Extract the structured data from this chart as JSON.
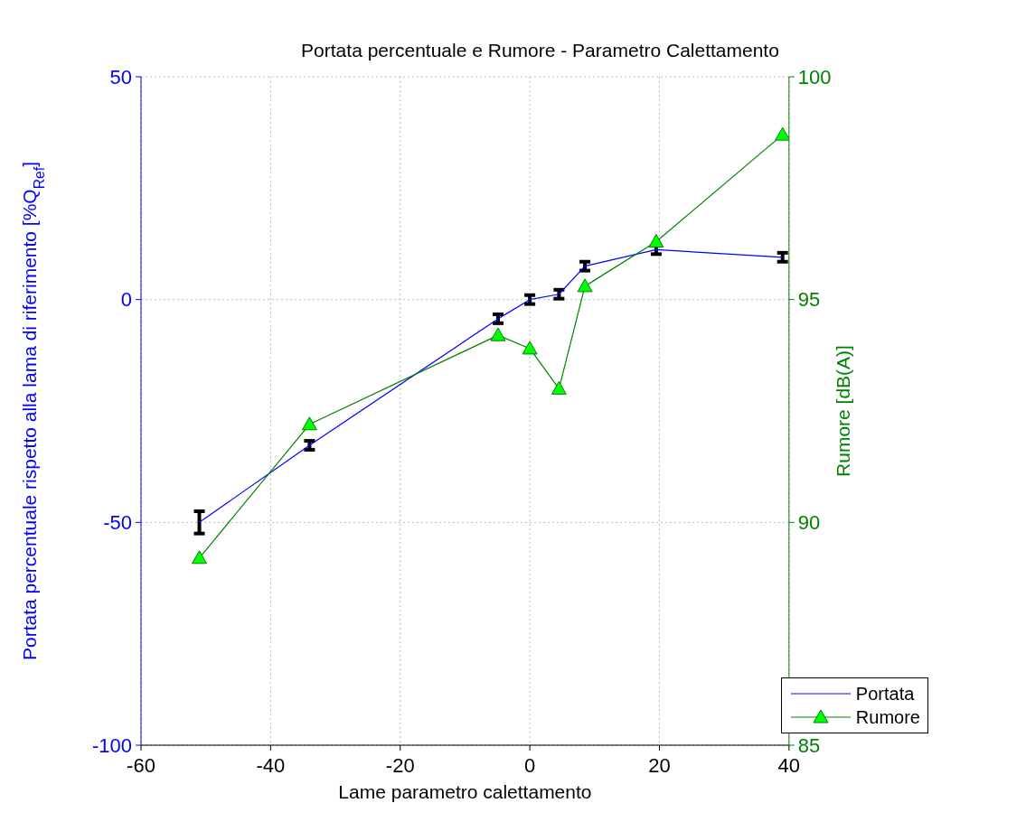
{
  "chart_data": {
    "type": "line",
    "title": "Portata percentuale e Rumore - Parametro Calettamento",
    "xlabel": "Lame parametro calettamento",
    "ylabel": "Portata percentuale rispetto alla lama di riferimento [%Q$_{Ref}$]",
    "y2label": "Rumore [dB(A)]",
    "x": [
      -51,
      -34,
      -4.9,
      0,
      4.5,
      8.5,
      19.5,
      39
    ],
    "series": [
      {
        "name": "Portata",
        "color": "#0000ff",
        "values": [
          -50,
          -32.7,
          -4.3,
          0,
          1.2,
          7.5,
          11.2,
          9.5
        ],
        "errors": [
          2.5,
          1,
          1,
          1,
          1,
          1,
          1,
          1
        ],
        "marker": "none"
      },
      {
        "name": "Rumore",
        "color": "#008000",
        "values": [
          89.2,
          92.2,
          94.2,
          93.9,
          93,
          95.3,
          96.3,
          98.7
        ],
        "axis": "y2",
        "marker": "triangle"
      }
    ],
    "xlim": [
      -60,
      40
    ],
    "xticks": [
      -60,
      -40,
      -20,
      0,
      20,
      40
    ],
    "ylim": [
      -100,
      50
    ],
    "yticks": [
      -100,
      -50,
      0,
      50
    ],
    "y2lim": [
      85,
      100
    ],
    "y2ticks": [
      85,
      90,
      95,
      100
    ],
    "grid": true,
    "legend": "bottom right"
  }
}
